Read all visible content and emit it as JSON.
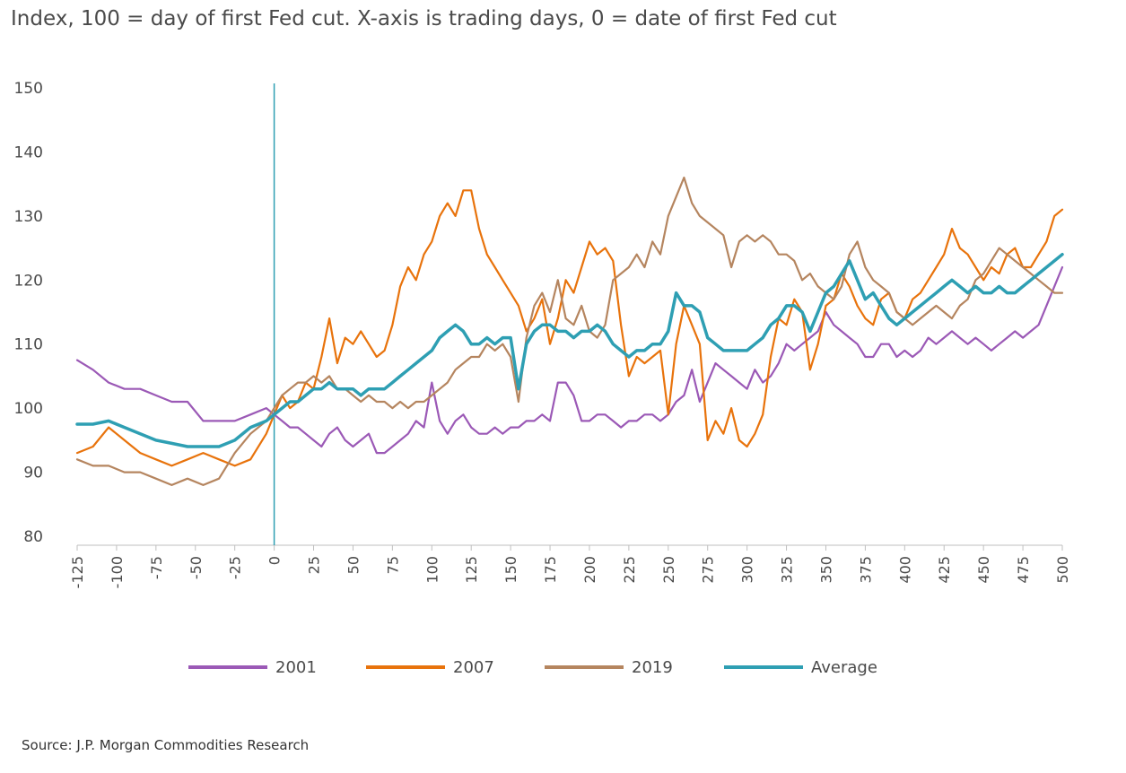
{
  "title": "Index, 100 = day of first Fed cut. X-axis is trading days, 0 = date of first Fed cut",
  "source": "Source: J.P. Morgan Commodities Research",
  "chart_data": {
    "type": "line",
    "title": "Index, 100 = day of first Fed cut. X-axis is trading days, 0 = date of first Fed cut",
    "xlabel": "",
    "ylabel": "",
    "xlim": [
      -125,
      500
    ],
    "ylim": [
      80,
      150
    ],
    "xticks": [
      -125,
      -100,
      -75,
      -50,
      -25,
      0,
      25,
      50,
      75,
      100,
      125,
      150,
      175,
      200,
      225,
      250,
      275,
      300,
      325,
      350,
      375,
      400,
      425,
      450,
      475,
      500
    ],
    "yticks": [
      80,
      90,
      100,
      110,
      120,
      130,
      140,
      150
    ],
    "vline_x": 0,
    "grid": false,
    "legend_position": "bottom",
    "series": [
      {
        "name": "2001",
        "color": "#9b59b6",
        "x": [
          -125,
          -115,
          -105,
          -95,
          -85,
          -75,
          -65,
          -55,
          -45,
          -35,
          -25,
          -15,
          -5,
          0,
          5,
          10,
          15,
          20,
          25,
          30,
          35,
          40,
          45,
          50,
          55,
          60,
          65,
          70,
          75,
          80,
          85,
          90,
          95,
          100,
          105,
          110,
          115,
          120,
          125,
          130,
          135,
          140,
          145,
          150,
          155,
          160,
          165,
          170,
          175,
          180,
          185,
          190,
          195,
          200,
          205,
          210,
          215,
          220,
          225,
          230,
          235,
          240,
          245,
          250,
          255,
          260,
          265,
          270,
          275,
          280,
          285,
          290,
          295,
          300,
          305,
          310,
          315,
          320,
          325,
          330,
          335,
          340,
          345,
          350,
          355,
          360,
          365,
          370,
          375,
          380,
          385,
          390,
          395,
          400,
          405,
          410,
          415,
          420,
          425,
          430,
          435,
          440,
          445,
          450,
          455,
          460,
          465,
          470,
          475,
          480,
          485,
          490,
          495,
          500
        ],
        "values": [
          107.5,
          106,
          104,
          103,
          103,
          102,
          101,
          101,
          98,
          98,
          98,
          99,
          100,
          99,
          98,
          97,
          97,
          96,
          95,
          94,
          96,
          97,
          95,
          94,
          95,
          96,
          93,
          93,
          94,
          95,
          96,
          98,
          97,
          104,
          98,
          96,
          98,
          99,
          97,
          96,
          96,
          97,
          96,
          97,
          97,
          98,
          98,
          99,
          98,
          104,
          104,
          102,
          98,
          98,
          99,
          99,
          98,
          97,
          98,
          98,
          99,
          99,
          98,
          99,
          101,
          102,
          106,
          101,
          104,
          107,
          106,
          105,
          104,
          103,
          106,
          104,
          105,
          107,
          110,
          109,
          110,
          111,
          112,
          115,
          113,
          112,
          111,
          110,
          108,
          108,
          110,
          110,
          108,
          109,
          108,
          109,
          111,
          110,
          111,
          112,
          111,
          110,
          111,
          110,
          109,
          110,
          111,
          112,
          111,
          112,
          113,
          116,
          119,
          122
        ]
      },
      {
        "name": "2007",
        "color": "#e8730c",
        "x": [
          -125,
          -115,
          -105,
          -95,
          -85,
          -75,
          -65,
          -55,
          -45,
          -35,
          -25,
          -15,
          -5,
          0,
          5,
          10,
          15,
          20,
          25,
          30,
          35,
          40,
          45,
          50,
          55,
          60,
          65,
          70,
          75,
          80,
          85,
          90,
          95,
          100,
          105,
          110,
          115,
          120,
          125,
          130,
          135,
          140,
          145,
          150,
          155,
          160,
          165,
          170,
          175,
          180,
          185,
          190,
          195,
          200,
          205,
          210,
          215,
          220,
          225,
          230,
          235,
          240,
          245,
          250,
          255,
          260,
          265,
          270,
          275,
          280,
          285,
          290,
          295,
          300,
          305,
          310,
          315,
          320,
          325,
          330,
          335,
          340,
          345,
          350,
          355,
          360,
          365,
          370,
          375,
          380,
          385,
          390,
          395,
          400,
          405,
          410,
          415,
          420,
          425,
          430,
          435,
          440,
          445,
          450,
          455,
          460,
          465,
          470,
          475,
          480,
          485,
          490,
          495,
          500
        ],
        "values": [
          93,
          94,
          97,
          95,
          93,
          92,
          91,
          92,
          93,
          92,
          91,
          92,
          96,
          99,
          102,
          100,
          101,
          104,
          103,
          108,
          114,
          107,
          111,
          110,
          112,
          110,
          108,
          109,
          113,
          119,
          122,
          120,
          124,
          126,
          130,
          132,
          130,
          134,
          134,
          128,
          124,
          122,
          120,
          118,
          116,
          112,
          114,
          117,
          110,
          114,
          120,
          118,
          122,
          126,
          124,
          125,
          123,
          113,
          105,
          108,
          107,
          108,
          109,
          99,
          110,
          116,
          113,
          110,
          95,
          98,
          96,
          100,
          95,
          94,
          96,
          99,
          108,
          114,
          113,
          117,
          115,
          106,
          110,
          116,
          117,
          121,
          119,
          116,
          114,
          113,
          117,
          118,
          115,
          114,
          117,
          118,
          120,
          122,
          124,
          128,
          125,
          124,
          122,
          120,
          122,
          121,
          124,
          125,
          122,
          122,
          124,
          126,
          130,
          131
        ]
      },
      {
        "name": "2019",
        "color": "#b5855f",
        "x": [
          -125,
          -115,
          -105,
          -95,
          -85,
          -75,
          -65,
          -55,
          -45,
          -35,
          -25,
          -15,
          -5,
          0,
          5,
          10,
          15,
          20,
          25,
          30,
          35,
          40,
          45,
          50,
          55,
          60,
          65,
          70,
          75,
          80,
          85,
          90,
          95,
          100,
          105,
          110,
          115,
          120,
          125,
          130,
          135,
          140,
          145,
          150,
          155,
          160,
          165,
          170,
          175,
          180,
          185,
          190,
          195,
          200,
          205,
          210,
          215,
          220,
          225,
          230,
          235,
          240,
          245,
          250,
          255,
          260,
          265,
          270,
          275,
          280,
          285,
          290,
          295,
          300,
          305,
          310,
          315,
          320,
          325,
          330,
          335,
          340,
          345,
          350,
          355,
          360,
          365,
          370,
          375,
          380,
          385,
          390,
          395,
          400,
          405,
          410,
          415,
          420,
          425,
          430,
          435,
          440,
          445,
          450,
          455,
          460,
          465,
          470,
          475,
          480,
          485,
          490,
          495,
          500
        ],
        "values": [
          92,
          91,
          91,
          90,
          90,
          89,
          88,
          89,
          88,
          89,
          93,
          96,
          98,
          100,
          102,
          103,
          104,
          104,
          105,
          104,
          105,
          103,
          103,
          102,
          101,
          102,
          101,
          101,
          100,
          101,
          100,
          101,
          101,
          102,
          103,
          104,
          106,
          107,
          108,
          108,
          110,
          109,
          110,
          108,
          101,
          111,
          116,
          118,
          115,
          120,
          114,
          113,
          116,
          112,
          111,
          113,
          120,
          121,
          122,
          124,
          122,
          126,
          124,
          130,
          133,
          136,
          132,
          130,
          129,
          128,
          127,
          122,
          126,
          127,
          126,
          127,
          126,
          124,
          124,
          123,
          120,
          121,
          119,
          118,
          117,
          119,
          124,
          126,
          122,
          120,
          119,
          118,
          115,
          114,
          113,
          114,
          115,
          116,
          115,
          114,
          116,
          117,
          120,
          121,
          123,
          125,
          124,
          123,
          122,
          121,
          120,
          119,
          118,
          118
        ]
      },
      {
        "name": "Average",
        "color": "#2e9fb3",
        "x": [
          -125,
          -115,
          -105,
          -95,
          -85,
          -75,
          -65,
          -55,
          -45,
          -35,
          -25,
          -15,
          -5,
          0,
          5,
          10,
          15,
          20,
          25,
          30,
          35,
          40,
          45,
          50,
          55,
          60,
          65,
          70,
          75,
          80,
          85,
          90,
          95,
          100,
          105,
          110,
          115,
          120,
          125,
          130,
          135,
          140,
          145,
          150,
          155,
          160,
          165,
          170,
          175,
          180,
          185,
          190,
          195,
          200,
          205,
          210,
          215,
          220,
          225,
          230,
          235,
          240,
          245,
          250,
          255,
          260,
          265,
          270,
          275,
          280,
          285,
          290,
          295,
          300,
          305,
          310,
          315,
          320,
          325,
          330,
          335,
          340,
          345,
          350,
          355,
          360,
          365,
          370,
          375,
          380,
          385,
          390,
          395,
          400,
          405,
          410,
          415,
          420,
          425,
          430,
          435,
          440,
          445,
          450,
          455,
          460,
          465,
          470,
          475,
          480,
          485,
          490,
          495,
          500
        ],
        "values": [
          97.5,
          97.5,
          98,
          97,
          96,
          95,
          94.5,
          94,
          94,
          94,
          95,
          97,
          98,
          99,
          100,
          101,
          101,
          102,
          103,
          103,
          104,
          103,
          103,
          103,
          102,
          103,
          103,
          103,
          104,
          105,
          106,
          107,
          108,
          109,
          111,
          112,
          113,
          112,
          110,
          110,
          111,
          110,
          111,
          111,
          103,
          110,
          112,
          113,
          113,
          112,
          112,
          111,
          112,
          112,
          113,
          112,
          110,
          109,
          108,
          109,
          109,
          110,
          110,
          112,
          118,
          116,
          116,
          115,
          111,
          110,
          109,
          109,
          109,
          109,
          110,
          111,
          113,
          114,
          116,
          116,
          115,
          112,
          115,
          118,
          119,
          121,
          123,
          120,
          117,
          118,
          116,
          114,
          113,
          114,
          115,
          116,
          117,
          118,
          119,
          120,
          119,
          118,
          119,
          118,
          118,
          119,
          118,
          118,
          119,
          120,
          121,
          122,
          123,
          124
        ]
      }
    ]
  }
}
